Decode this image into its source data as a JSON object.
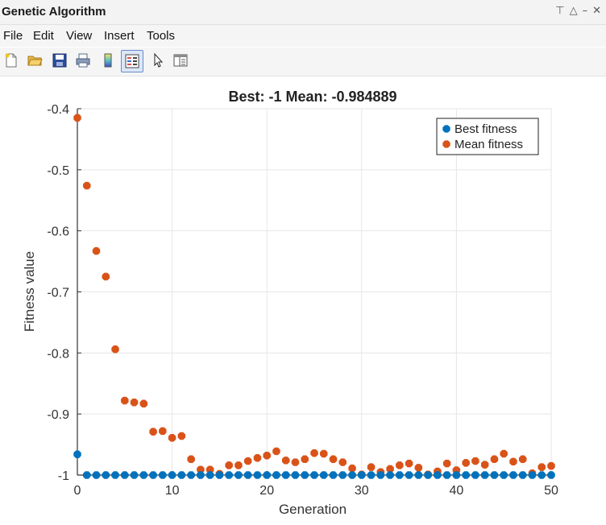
{
  "window": {
    "title": "Genetic Algorithm",
    "controls": [
      "⊤",
      "△",
      "–",
      "✕"
    ]
  },
  "menu": {
    "items": [
      "File",
      "Edit",
      "View",
      "Insert",
      "Tools"
    ]
  },
  "toolbar": {
    "buttons": [
      "new-figure-icon",
      "open-folder-icon",
      "save-icon",
      "print-icon",
      "colorbar-icon",
      "legend-icon",
      "pointer-icon",
      "property-inspector-icon"
    ]
  },
  "chart_data": {
    "type": "scatter",
    "title": "Best: -1 Mean: -0.984889",
    "xlabel": "Generation",
    "ylabel": "Fitness value",
    "xlim": [
      0,
      50
    ],
    "ylim": [
      -1,
      -0.4
    ],
    "xticks": [
      0,
      10,
      20,
      30,
      40,
      50
    ],
    "yticks": [
      -1,
      -0.9,
      -0.8,
      -0.7,
      -0.6,
      -0.5,
      -0.4
    ],
    "xtick_labels": [
      "0",
      "10",
      "20",
      "30",
      "40",
      "50"
    ],
    "ytick_labels": [
      "-1",
      "-0.9",
      "-0.8",
      "-0.7",
      "-0.6",
      "-0.5",
      "-0.4"
    ],
    "grid": true,
    "legend_position": "top-right",
    "series": [
      {
        "name": "Best fitness",
        "color": "#0072BD",
        "x": [
          0,
          1,
          2,
          3,
          4,
          5,
          6,
          7,
          8,
          9,
          10,
          11,
          12,
          13,
          14,
          15,
          16,
          17,
          18,
          19,
          20,
          21,
          22,
          23,
          24,
          25,
          26,
          27,
          28,
          29,
          30,
          31,
          32,
          33,
          34,
          35,
          36,
          37,
          38,
          39,
          40,
          41,
          42,
          43,
          44,
          45,
          46,
          47,
          48,
          49,
          50
        ],
        "y": [
          -0.966,
          -1,
          -1,
          -1,
          -1,
          -1,
          -1,
          -1,
          -1,
          -1,
          -1,
          -1,
          -1,
          -1,
          -1,
          -1,
          -1,
          -1,
          -1,
          -1,
          -1,
          -1,
          -1,
          -1,
          -1,
          -1,
          -1,
          -1,
          -1,
          -1,
          -1,
          -1,
          -1,
          -1,
          -1,
          -1,
          -1,
          -1,
          -1,
          -1,
          -1,
          -1,
          -1,
          -1,
          -1,
          -1,
          -1,
          -1,
          -1,
          -1,
          -1
        ]
      },
      {
        "name": "Mean fitness",
        "color": "#D95319",
        "x": [
          0,
          1,
          2,
          3,
          4,
          5,
          6,
          7,
          8,
          9,
          10,
          11,
          12,
          13,
          14,
          15,
          16,
          17,
          18,
          19,
          20,
          21,
          22,
          23,
          24,
          25,
          26,
          27,
          28,
          29,
          30,
          31,
          32,
          33,
          34,
          35,
          36,
          37,
          38,
          39,
          40,
          41,
          42,
          43,
          44,
          45,
          46,
          47,
          48,
          49,
          50
        ],
        "y": [
          -0.415,
          -0.526,
          -0.633,
          -0.675,
          -0.794,
          -0.878,
          -0.881,
          -0.883,
          -0.929,
          -0.928,
          -0.939,
          -0.936,
          -0.974,
          -0.991,
          -0.991,
          -0.998,
          -0.984,
          -0.984,
          -0.977,
          -0.972,
          -0.968,
          -0.961,
          -0.976,
          -0.979,
          -0.974,
          -0.964,
          -0.965,
          -0.974,
          -0.979,
          -0.989,
          -0.999,
          -0.987,
          -0.995,
          -0.99,
          -0.984,
          -0.981,
          -0.988,
          -0.999,
          -0.994,
          -0.981,
          -0.992,
          -0.98,
          -0.977,
          -0.983,
          -0.974,
          -0.965,
          -0.978,
          -0.974,
          -0.997,
          -0.987,
          -0.985
        ]
      }
    ]
  }
}
